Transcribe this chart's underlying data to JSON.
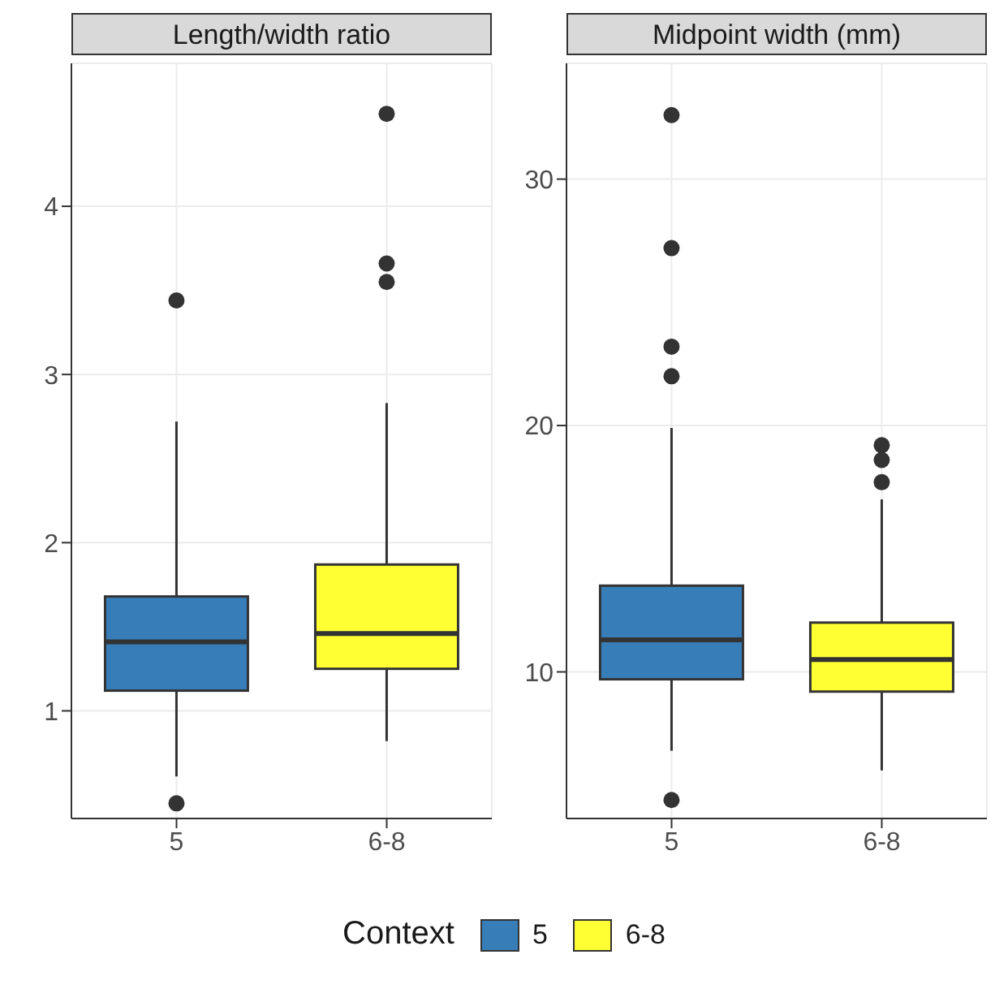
{
  "chart_data": [
    {
      "type": "box",
      "title": "Length/width ratio",
      "categories": [
        "5",
        "6-8"
      ],
      "ylim": [
        0.36,
        4.85
      ],
      "yticks": [
        1,
        2,
        3,
        4
      ],
      "grid": true,
      "legend": "bottom",
      "legend_title": "Context",
      "series": [
        {
          "name": "5",
          "color": "#377eb8",
          "boxes": [
            {
              "low": 0.61,
              "q1": 1.12,
              "median": 1.41,
              "q3": 1.68,
              "high": 2.72,
              "outliers": [
                3.44,
                0.45
              ]
            },
            null
          ]
        },
        {
          "name": "6-8",
          "color": "#ffff33",
          "boxes": [
            null,
            {
              "low": 0.82,
              "q1": 1.25,
              "median": 1.46,
              "q3": 1.87,
              "high": 2.83,
              "outliers": [
                4.55,
                3.66,
                3.55
              ]
            }
          ]
        }
      ]
    },
    {
      "type": "box",
      "title": "Midpoint width (mm)",
      "categories": [
        "5",
        "6-8"
      ],
      "ylim": [
        4.05,
        34.7
      ],
      "yticks": [
        10,
        20,
        30
      ],
      "grid": true,
      "series": [
        {
          "color": "#377eb8",
          "boxes": [
            {
              "low": 6.8,
              "q1": 9.7,
              "median": 11.3,
              "q3": 13.5,
              "high": 19.9,
              "outliers": [
                32.6,
                27.2,
                23.2,
                22.0,
                4.8
              ]
            },
            null
          ]
        },
        {
          "color": "#ffff33",
          "boxes": [
            null,
            {
              "low": 6.0,
              "q1": 9.2,
              "median": 10.5,
              "q3": 12.0,
              "high": 17.0,
              "outliers": [
                19.2,
                18.6,
                17.7
              ]
            }
          ]
        }
      ]
    }
  ]
}
